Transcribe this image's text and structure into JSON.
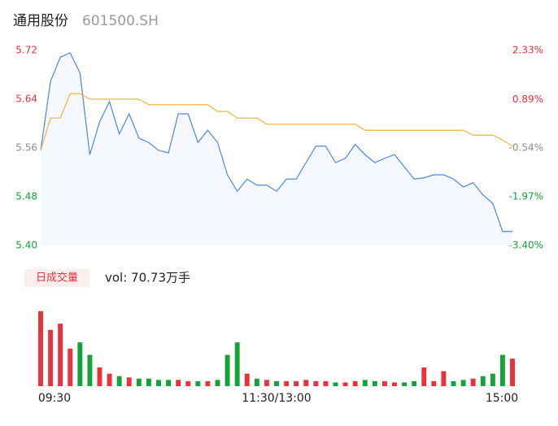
{
  "chart_data": {
    "type": "line",
    "title": "通用股份",
    "subtitle": "601500.SH",
    "volume_label": "日成交量",
    "volume_text": "vol: 70.73万手",
    "x": [
      0,
      5,
      10,
      15,
      20,
      25,
      30,
      35,
      40,
      45,
      50,
      55,
      60,
      65,
      70,
      75,
      80,
      85,
      90,
      95,
      100,
      105,
      110,
      115,
      120,
      125,
      130,
      135,
      140,
      145,
      150,
      155,
      160,
      165,
      170,
      175,
      180,
      185,
      190,
      195,
      200,
      205,
      210,
      215,
      220,
      225,
      230,
      235,
      240
    ],
    "xlim": [
      0,
      240
    ],
    "xticks": [
      {
        "value": 0,
        "label": "09:30"
      },
      {
        "value": 120,
        "label": "11:30/13:00"
      },
      {
        "value": 240,
        "label": "15:00"
      }
    ],
    "ylim": [
      5.4,
      5.72
    ],
    "yticks": [
      5.72,
      5.64,
      5.56,
      5.48,
      {
        "value": 5.4,
        "label": "5.40"
      }
    ],
    "y2lim": [
      -3.4,
      2.33
    ],
    "y2ticks": [
      {
        "value": 2.33,
        "label": "2.33%"
      },
      {
        "value": 0.89,
        "label": "0.89%"
      },
      {
        "value": -0.54,
        "label": "-0.54%"
      },
      {
        "value": -1.97,
        "label": "-1.97%"
      },
      {
        "value": -3.4,
        "label": "-3.40%"
      }
    ],
    "tick_colors": [
      "#e8323c",
      "#e8323c",
      "#8c8c8c",
      "#14a33a",
      "#14a33a"
    ],
    "series": [
      {
        "name": "price",
        "color": "#4f86e6",
        "values": [
          5.556,
          5.669,
          5.709,
          5.716,
          5.683,
          5.549,
          5.603,
          5.636,
          5.583,
          5.616,
          5.576,
          5.569,
          5.556,
          5.552,
          5.616,
          5.616,
          5.569,
          5.589,
          5.569,
          5.516,
          5.489,
          5.509,
          5.499,
          5.499,
          5.489,
          5.509,
          5.509,
          5.536,
          5.563,
          5.563,
          5.536,
          5.543,
          5.566,
          5.549,
          5.536,
          5.543,
          5.549,
          5.529,
          5.509,
          5.511,
          5.516,
          5.516,
          5.509,
          5.496,
          5.503,
          5.483,
          5.469,
          5.423,
          5.423
        ]
      },
      {
        "name": "average",
        "color": "#f2b637",
        "values": [
          5.556,
          5.609,
          5.609,
          5.649,
          5.649,
          5.64,
          5.64,
          5.64,
          5.64,
          5.64,
          5.64,
          5.631,
          5.631,
          5.631,
          5.631,
          5.631,
          5.631,
          5.631,
          5.62,
          5.62,
          5.609,
          5.609,
          5.609,
          5.599,
          5.599,
          5.599,
          5.599,
          5.599,
          5.599,
          5.599,
          5.599,
          5.599,
          5.599,
          5.589,
          5.589,
          5.589,
          5.589,
          5.589,
          5.589,
          5.589,
          5.589,
          5.589,
          5.589,
          5.589,
          5.581,
          5.581,
          5.581,
          5.573,
          5.563
        ]
      }
    ],
    "volume": [
      6.0,
      4.5,
      5.0,
      3.0,
      3.5,
      2.5,
      1.5,
      1.0,
      0.8,
      0.7,
      0.6,
      0.6,
      0.5,
      0.5,
      0.5,
      0.4,
      0.4,
      0.4,
      0.5,
      2.5,
      3.5,
      1.0,
      0.6,
      0.5,
      0.4,
      0.4,
      0.4,
      0.5,
      0.4,
      0.4,
      0.3,
      0.3,
      0.4,
      0.5,
      0.4,
      0.4,
      0.3,
      0.3,
      0.4,
      1.5,
      0.4,
      1.2,
      0.4,
      0.5,
      0.6,
      0.8,
      1.0,
      2.5,
      2.2
    ],
    "volume_lim": [
      0,
      6.5
    ],
    "up_color": "#e8323c",
    "down_color": "#14a33a"
  }
}
